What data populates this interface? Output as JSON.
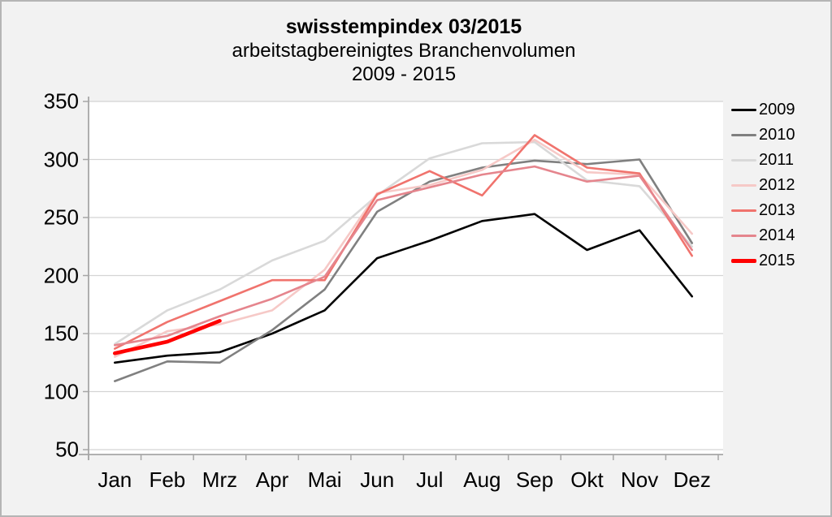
{
  "header": {
    "title": "swisstempindex 03/2015",
    "subtitle": "arbeitstagbereinigtes Branchenvolumen",
    "period": "2009 - 2015"
  },
  "chart_data": {
    "type": "line",
    "title": "swisstempindex 03/2015",
    "subtitle": "arbeitstagbereinigtes Branchenvolumen 2009 - 2015",
    "categories": [
      "Jan",
      "Feb",
      "Mrz",
      "Apr",
      "Mai",
      "Jun",
      "Jul",
      "Aug",
      "Sep",
      "Okt",
      "Nov",
      "Dez"
    ],
    "ylim": [
      50,
      350
    ],
    "yticks": [
      50,
      100,
      150,
      200,
      250,
      300,
      350
    ],
    "grid": true,
    "legend_position": "right",
    "series": [
      {
        "name": "2009",
        "color": "#000000",
        "line_width": 2.6,
        "values": [
          125,
          131,
          134,
          150,
          170,
          215,
          230,
          247,
          253,
          222,
          239,
          182
        ]
      },
      {
        "name": "2010",
        "color": "#808080",
        "line_width": 2.6,
        "values": [
          109,
          126,
          125,
          153,
          188,
          255,
          281,
          293,
          299,
          296,
          300,
          228
        ]
      },
      {
        "name": "2011",
        "color": "#d9d9d9",
        "line_width": 2.6,
        "values": [
          141,
          170,
          188,
          213,
          230,
          269,
          301,
          314,
          315,
          282,
          277,
          225
        ]
      },
      {
        "name": "2012",
        "color": "#f6c9c7",
        "line_width": 2.6,
        "values": [
          130,
          152,
          158,
          170,
          205,
          271,
          278,
          291,
          317,
          289,
          287,
          236
        ]
      },
      {
        "name": "2013",
        "color": "#f0736d",
        "line_width": 2.6,
        "values": [
          137,
          160,
          178,
          196,
          196,
          270,
          290,
          269,
          321,
          293,
          288,
          217
        ]
      },
      {
        "name": "2014",
        "color": "#e5858d",
        "line_width": 2.6,
        "values": [
          140,
          148,
          165,
          180,
          199,
          265,
          276,
          287,
          294,
          281,
          286,
          222
        ]
      },
      {
        "name": "2015",
        "color": "#ff0000",
        "line_width": 4.6,
        "values": [
          133,
          143,
          161
        ]
      }
    ],
    "colors": {
      "background": "#f2f2f2",
      "plot_background": "#ffffff",
      "gridline": "#d4d4d4",
      "axis": "#a6a6a6",
      "accent_2015": "#ff0000"
    }
  }
}
